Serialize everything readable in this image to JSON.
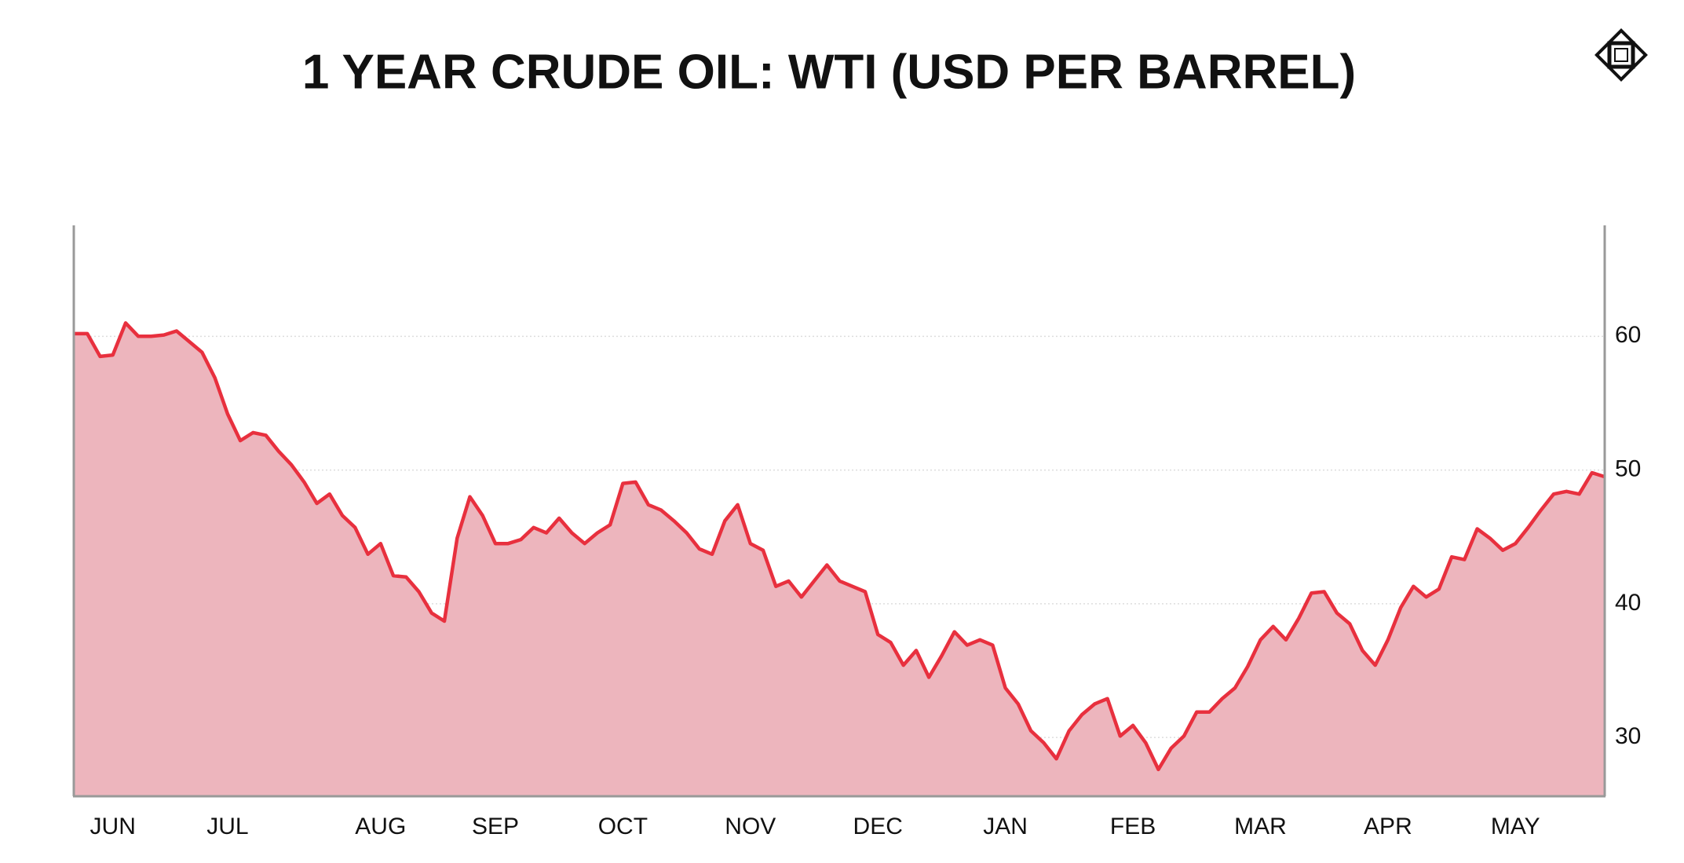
{
  "chart_data": {
    "type": "area",
    "title": "1 YEAR CRUDE OIL: WTI (USD PER BARREL)",
    "categories": [
      null,
      null,
      null,
      "JUN",
      null,
      null,
      null,
      null,
      null,
      null,
      null,
      null,
      "JUL",
      null,
      null,
      null,
      null,
      null,
      null,
      null,
      null,
      null,
      null,
      null,
      "AUG",
      null,
      null,
      null,
      null,
      null,
      null,
      null,
      null,
      "SEP",
      null,
      null,
      null,
      null,
      null,
      null,
      null,
      null,
      null,
      "OCT",
      null,
      null,
      null,
      null,
      null,
      null,
      null,
      null,
      null,
      "NOV",
      null,
      null,
      null,
      null,
      null,
      null,
      null,
      null,
      null,
      "DEC",
      null,
      null,
      null,
      null,
      null,
      null,
      null,
      null,
      null,
      "JAN",
      null,
      null,
      null,
      null,
      null,
      null,
      null,
      null,
      null,
      "FEB",
      null,
      null,
      null,
      null,
      null,
      null,
      null,
      null,
      null,
      "MAR",
      null,
      null,
      null,
      null,
      null,
      null,
      null,
      null,
      null,
      "APR",
      null,
      null,
      null,
      null,
      null,
      null,
      null,
      null,
      null,
      "MAY",
      null,
      null,
      null,
      null,
      null,
      null,
      null
    ],
    "values": [
      60.2,
      60.2,
      58.5,
      58.6,
      61,
      60,
      60,
      60.1,
      60.4,
      59.6,
      58.8,
      56.9,
      54.2,
      52.2,
      52.8,
      52.6,
      51.4,
      50.4,
      49.1,
      47.5,
      48.2,
      46.6,
      45.7,
      43.7,
      44.5,
      42.1,
      42,
      40.9,
      39.3,
      38.7,
      44.9,
      48,
      46.6,
      44.5,
      44.5,
      44.8,
      45.7,
      45.3,
      46.4,
      45.3,
      44.5,
      45.3,
      45.9,
      49,
      49.1,
      47.4,
      47,
      46.2,
      45.3,
      44.1,
      43.7,
      46.2,
      47.4,
      44.5,
      44,
      41.3,
      41.7,
      40.5,
      41.7,
      42.9,
      41.7,
      41.3,
      40.9,
      37.7,
      37.1,
      35.4,
      36.5,
      34.5,
      36.1,
      37.9,
      36.9,
      37.3,
      36.9,
      33.7,
      32.5,
      30.5,
      29.6,
      28.4,
      30.5,
      31.7,
      32.5,
      32.9,
      30.1,
      30.9,
      29.6,
      27.6,
      29.2,
      30.1,
      31.9,
      31.9,
      32.9,
      33.7,
      35.3,
      37.3,
      38.3,
      37.3,
      38.9,
      40.8,
      40.9,
      39.3,
      38.5,
      36.5,
      35.4,
      37.3,
      39.7,
      41.3,
      40.5,
      41.1,
      43.5,
      43.3,
      45.6,
      44.9,
      44,
      44.5,
      45.7,
      47,
      48.2,
      48.4,
      48.2,
      49.8,
      49.5
    ],
    "color": "#e8303e",
    "fill": "#edb5bd",
    "ylim": [
      25.6,
      68.3
    ],
    "yticks": [
      30,
      40,
      50,
      60
    ],
    "grid": true
  }
}
